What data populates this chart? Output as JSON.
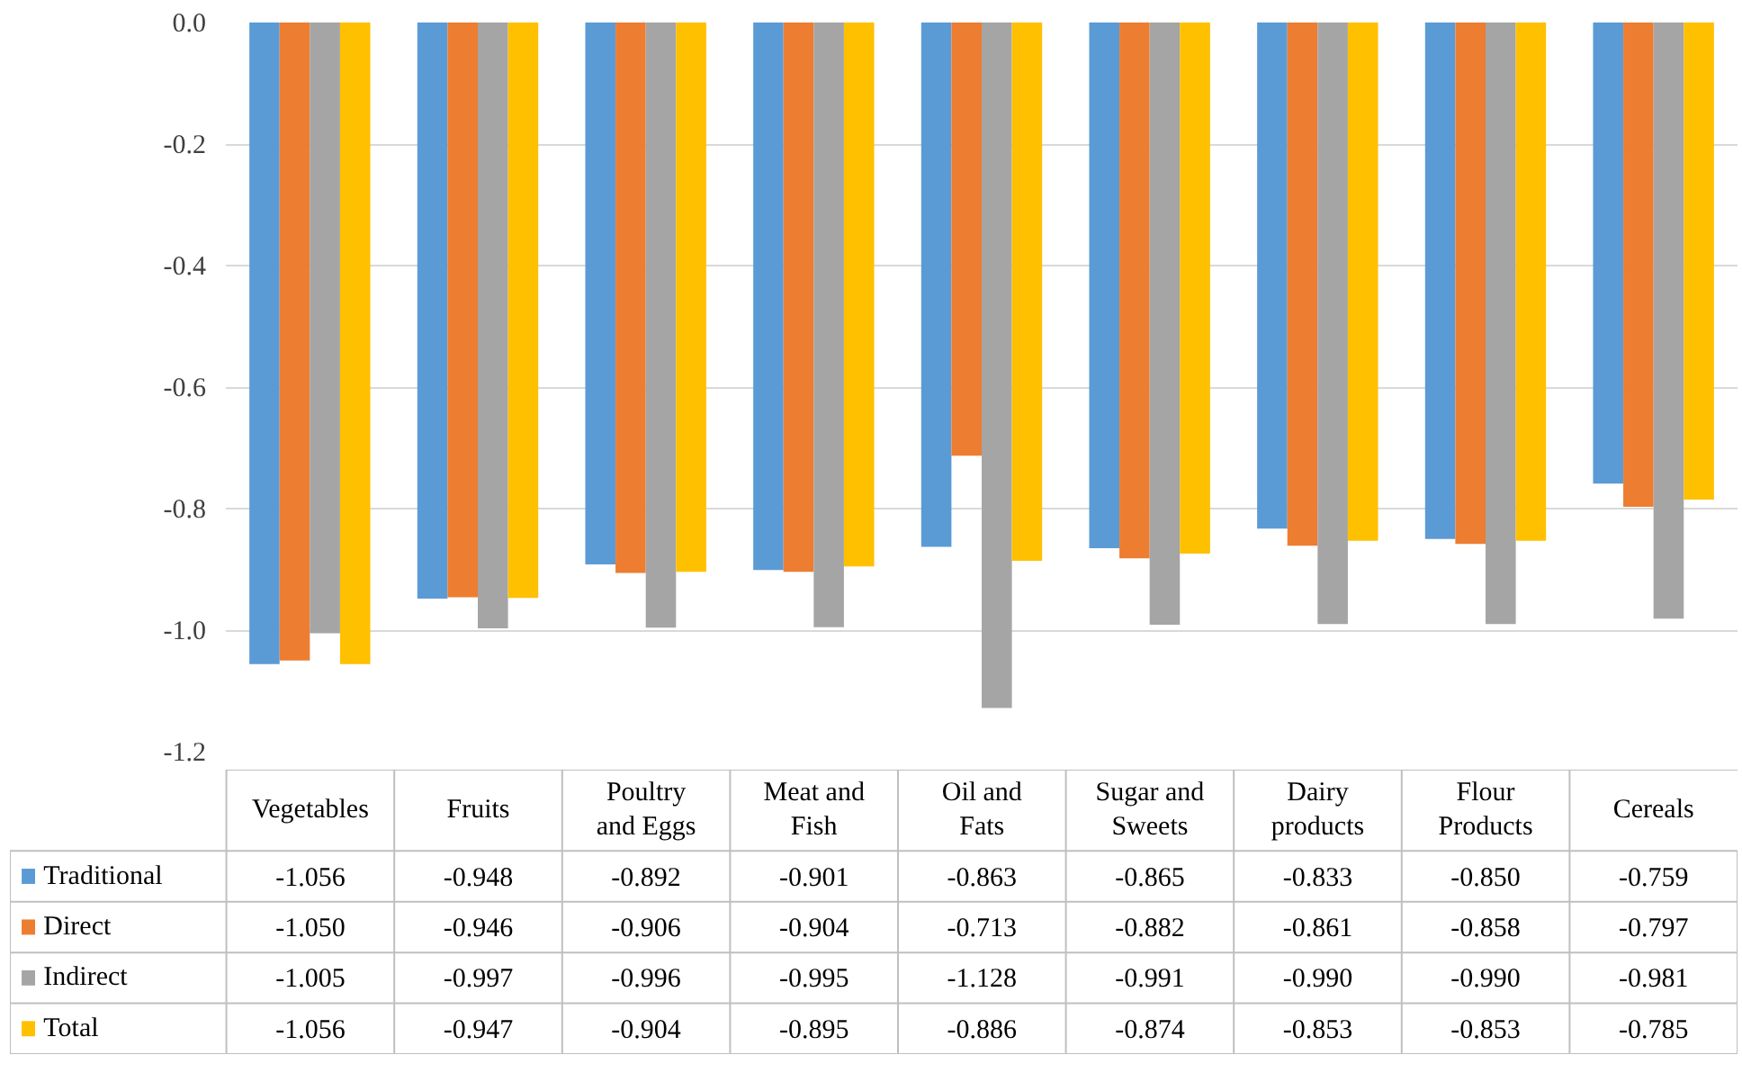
{
  "chart_data": {
    "type": "bar",
    "categories": [
      "Vegetables",
      "Fruits",
      "Poultry and Eggs",
      "Meat and Fish",
      "Oil and Fats",
      "Sugar and Sweets",
      "Dairy products",
      "Flour Products",
      "Cereals"
    ],
    "ylim": [
      -1.2,
      0
    ],
    "yticks": [
      {
        "value": -1.2,
        "label": "-1.2"
      },
      {
        "value": -1.0,
        "label": "-1.0"
      },
      -0.8,
      -0.6,
      -0.4,
      -0.2,
      {
        "value": 0,
        "label": "0.0"
      }
    ],
    "grid": "y",
    "legend": "bottom",
    "series": [
      {
        "name": "Traditional",
        "color": "#5b9bd5",
        "values": [
          -1.056,
          -0.948,
          -0.892,
          -0.901,
          -0.863,
          -0.865,
          -0.833,
          -0.85,
          -0.759
        ],
        "value_labels": [
          "-1.056",
          "-0.948",
          "-0.892",
          "-0.901",
          "-0.863",
          "-0.865",
          "-0.833",
          "-0.850",
          "-0.759"
        ]
      },
      {
        "name": "Direct",
        "color": "#ed7d31",
        "values": [
          -1.05,
          -0.946,
          -0.906,
          -0.904,
          -0.713,
          -0.882,
          -0.861,
          -0.858,
          -0.797
        ],
        "value_labels": [
          "-1.050",
          "-0.946",
          "-0.906",
          "-0.904",
          "-0.713",
          "-0.882",
          "-0.861",
          "-0.858",
          "-0.797"
        ]
      },
      {
        "name": "Indirect",
        "color": "#a5a5a5",
        "values": [
          -1.005,
          -0.997,
          -0.996,
          -0.995,
          -1.128,
          -0.991,
          -0.99,
          -0.99,
          -0.981
        ],
        "value_labels": [
          "-1.005",
          "-0.997",
          "-0.996",
          "-0.995",
          "-1.128",
          "-0.991",
          "-0.990",
          "-0.990",
          "-0.981"
        ]
      },
      {
        "name": "Total",
        "color": "#ffc000",
        "values": [
          -1.056,
          -0.947,
          -0.904,
          -0.895,
          -0.886,
          -0.874,
          -0.853,
          -0.853,
          -0.785
        ],
        "value_labels": [
          "-1.056",
          "-0.947",
          "-0.904",
          "-0.895",
          "-0.886",
          "-0.874",
          "-0.853",
          "-0.853",
          "-0.785"
        ]
      }
    ]
  }
}
